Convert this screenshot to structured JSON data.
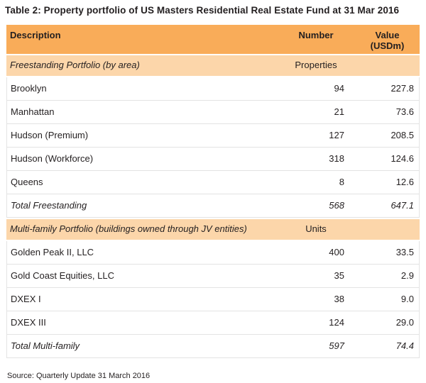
{
  "title": "Table 2: Property portfolio of US Masters Residential Real Estate Fund at 31 Mar 2016",
  "columns": {
    "description": "Description",
    "number": "Number",
    "value_line1": "Value",
    "value_line2": "(USDm)"
  },
  "sections": [
    {
      "label": "Freestanding Portfolio (by area)",
      "unit": "Properties",
      "rows": [
        {
          "description": "Brooklyn",
          "number": "94",
          "value": "227.8"
        },
        {
          "description": "Manhattan",
          "number": "21",
          "value": "73.6"
        },
        {
          "description": "Hudson (Premium)",
          "number": "127",
          "value": "208.5"
        },
        {
          "description": "Hudson (Workforce)",
          "number": "318",
          "value": "124.6"
        },
        {
          "description": "Queens",
          "number": "8",
          "value": "12.6"
        }
      ],
      "total": {
        "label": "Total Freestanding",
        "number": "568",
        "value": "647.1"
      }
    },
    {
      "label": "Multi-family Portfolio (buildings owned through JV entities)",
      "unit": "Units",
      "rows": [
        {
          "description": "Golden Peak II, LLC",
          "number": "400",
          "value": "33.5"
        },
        {
          "description": "Gold Coast Equities, LLC",
          "number": "35",
          "value": "2.9"
        },
        {
          "description": "DXEX I",
          "number": "38",
          "value": "9.0"
        },
        {
          "description": "DXEX III",
          "number": "124",
          "value": "29.0"
        }
      ],
      "total": {
        "label": "Total Multi-family",
        "number": "597",
        "value": "74.4"
      }
    }
  ],
  "source": "Source: Quarterly Update 31 March 2016",
  "colors": {
    "header_bg": "#F9AC59",
    "section_bg": "#FCD6AA",
    "text": "#231F20",
    "row_border": "#E3E3E3",
    "page_bg": "#FFFFFF"
  }
}
